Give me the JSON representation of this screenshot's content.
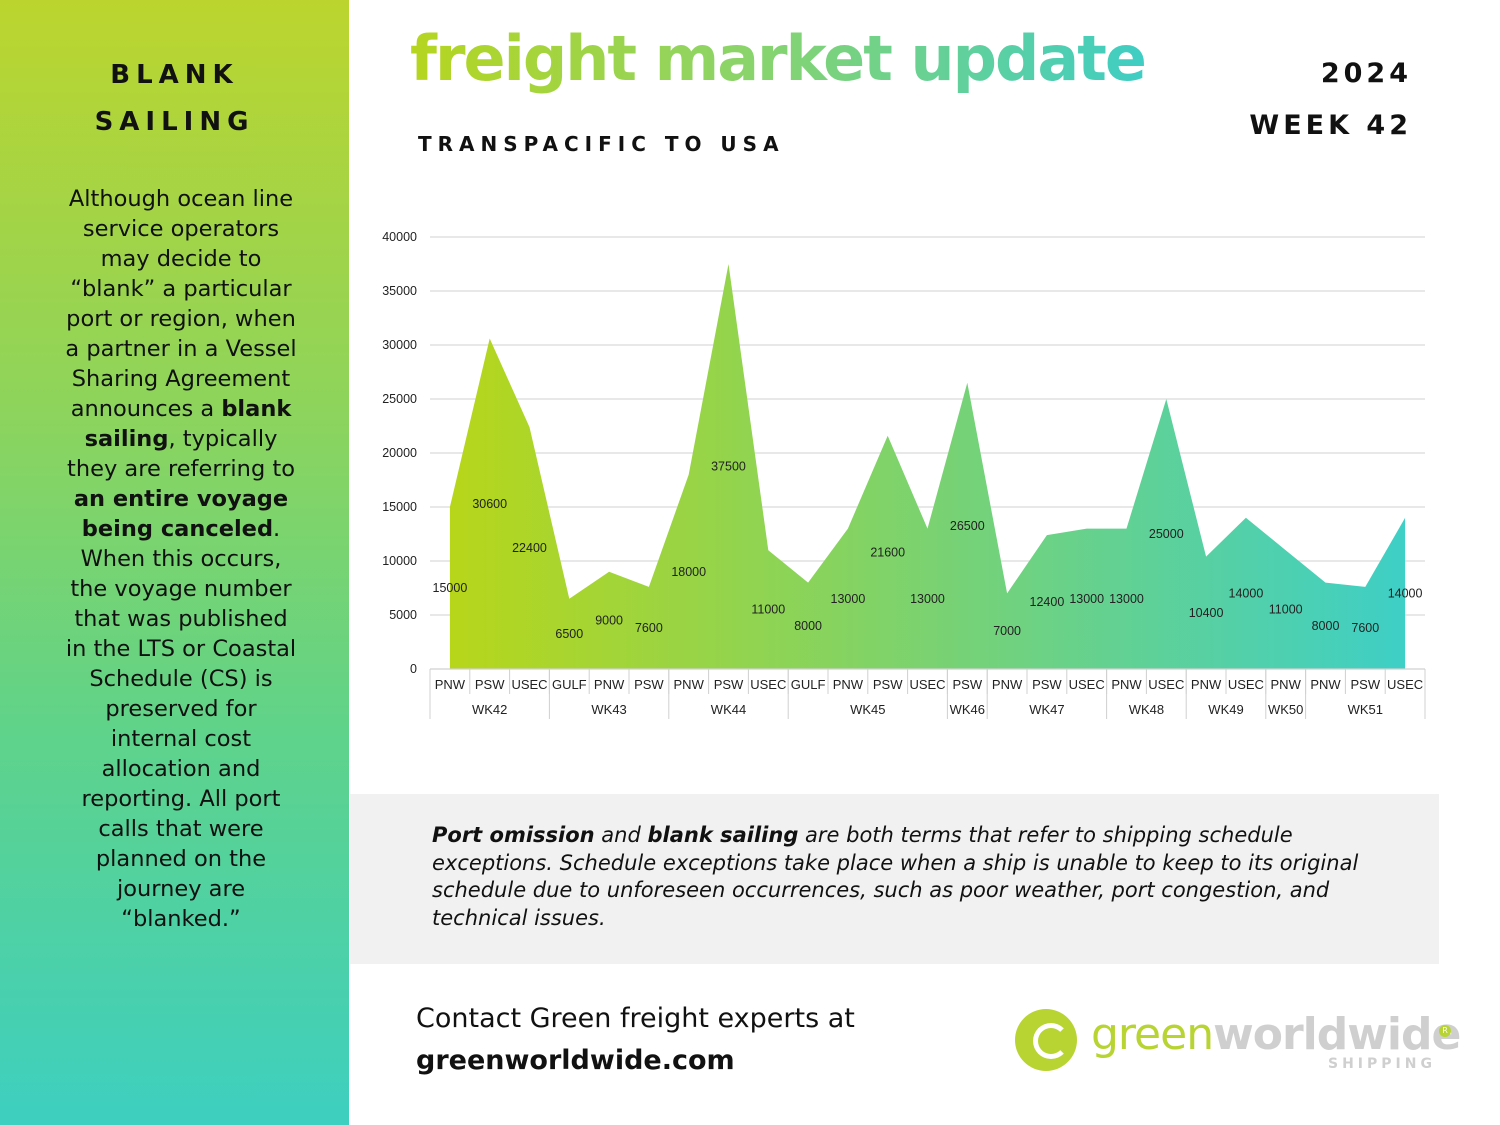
{
  "sidebar": {
    "title_line1": "BLANK",
    "title_line2": "SAILING",
    "body": [
      {
        "text": "Although ocean line service operators may decide to “blank” a particular port or region, when a partner in a Vessel Sharing Agreement announces a ",
        "bold": false
      },
      {
        "text": "blank sailing",
        "bold": true
      },
      {
        "text": ", typically they are referring to ",
        "bold": false
      },
      {
        "text": "an entire voyage being canceled",
        "bold": true
      },
      {
        "text": ". When this occurs, the voyage number that was published in the LTS or Coastal Schedule (CS) is preserved for internal cost allocation and reporting. All port calls that were planned on the journey are “blanked.”",
        "bold": false
      }
    ]
  },
  "header": {
    "title": "freight market update",
    "subtitle": "TRANSPACIFIC TO USA",
    "year": "2024",
    "week": "WEEK 42"
  },
  "chart_data": {
    "type": "area",
    "title": "",
    "xlabel": "",
    "ylabel": "",
    "ylim": [
      0,
      40000
    ],
    "yticks": [
      0,
      5000,
      10000,
      15000,
      20000,
      25000,
      30000,
      35000,
      40000
    ],
    "grid": true,
    "categories": [
      "PNW",
      "PSW",
      "USEC",
      "GULF",
      "PNW",
      "PSW",
      "PNW",
      "PSW",
      "USEC",
      "GULF",
      "PNW",
      "PSW",
      "USEC",
      "PSW",
      "PNW",
      "PSW",
      "USEC",
      "PNW",
      "USEC",
      "PNW",
      "USEC",
      "PNW",
      "PNW",
      "PSW",
      "USEC"
    ],
    "groups": [
      {
        "label": "WK42",
        "count": 3
      },
      {
        "label": "WK43",
        "count": 3
      },
      {
        "label": "WK44",
        "count": 3
      },
      {
        "label": "WK45",
        "count": 4
      },
      {
        "label": "WK46",
        "count": 1
      },
      {
        "label": "WK47",
        "count": 3
      },
      {
        "label": "WK48",
        "count": 2
      },
      {
        "label": "WK49",
        "count": 2
      },
      {
        "label": "WK50",
        "count": 1
      },
      {
        "label": "WK51",
        "count": 3
      }
    ],
    "series": [
      {
        "values": [
          15000,
          30600,
          22400,
          6500,
          9000,
          7600,
          18000,
          37500,
          11000,
          8000,
          13000,
          21600,
          13000,
          26500,
          7000,
          12400,
          13000,
          13000,
          25000,
          10400,
          14000,
          11000,
          8000,
          7600,
          14000
        ]
      }
    ],
    "colors": {
      "start": "#b7d61a",
      "end": "#3ecfc6"
    }
  },
  "info": {
    "parts": [
      {
        "text": "Port omission",
        "bold": true
      },
      {
        "text": " and ",
        "bold": false
      },
      {
        "text": "blank sailing",
        "bold": true
      },
      {
        "text": " are both terms that refer to shipping schedule exceptions. Schedule exceptions take place when a ship is unable to keep to its original schedule due to unforeseen occurrences, such as poor weather, port congestion, and technical issues.",
        "bold": false
      }
    ]
  },
  "footer": {
    "contact": "Contact Green freight experts at",
    "url": "greenworldwide.com"
  },
  "logo": {
    "word_green": "green",
    "word_grey": "worldwide",
    "registered": "R",
    "subtext": "SHIPPING"
  }
}
